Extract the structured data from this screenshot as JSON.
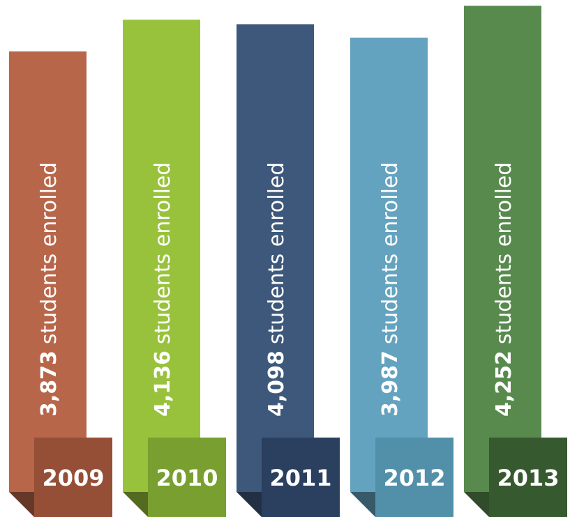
{
  "chart_data": {
    "type": "bar",
    "categories": [
      "2009",
      "2010",
      "2011",
      "2012",
      "2013"
    ],
    "values": [
      3873,
      4136,
      4098,
      3987,
      4252
    ],
    "value_labels": [
      "3,873",
      "4,136",
      "4,098",
      "3,987",
      "4,252"
    ],
    "label": "students enrolled",
    "colors": [
      "#b8664a",
      "#99c23c",
      "#3d587b",
      "#64a3bf",
      "#588a4e"
    ],
    "year_colors": [
      "#964f37",
      "#789f2f",
      "#2b3f5f",
      "#5290aa",
      "#37592f"
    ],
    "ylim": [
      0,
      4300
    ]
  }
}
